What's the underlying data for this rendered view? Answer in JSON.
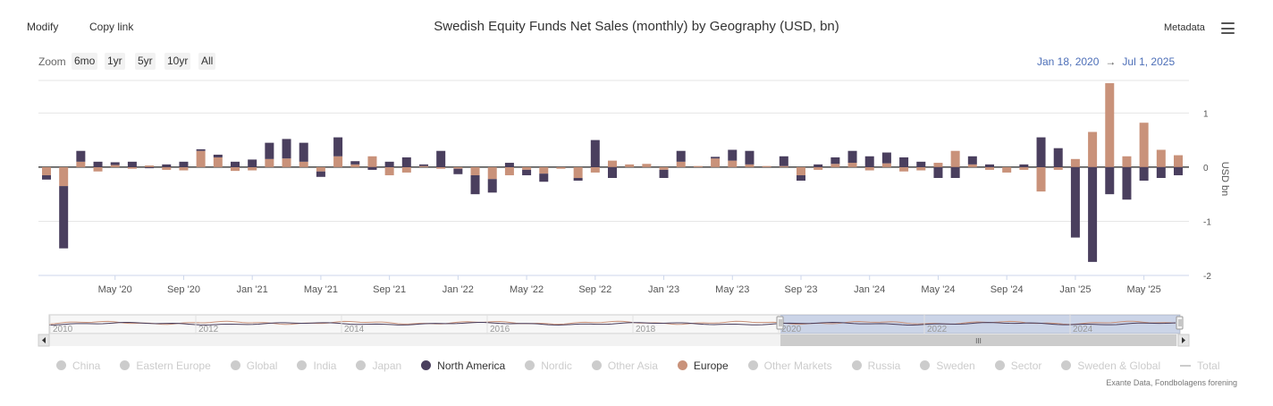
{
  "toolbar": {
    "modify": "Modify",
    "copy_link": "Copy link",
    "metadata": "Metadata"
  },
  "zoom": {
    "label": "Zoom",
    "buttons": [
      "6mo",
      "1yr",
      "5yr",
      "10yr",
      "All"
    ]
  },
  "range": {
    "from": "Jan 18, 2020",
    "arrow": "→",
    "to": "Jul 1, 2025"
  },
  "navigator": {
    "labels": [
      "2010",
      "2012",
      "2014",
      "2016",
      "2018",
      "2020",
      "2022",
      "2024"
    ],
    "grip": "III"
  },
  "legend": [
    {
      "name": "China",
      "color": "#cccccc",
      "active": false
    },
    {
      "name": "Eastern Europe",
      "color": "#cccccc",
      "active": false
    },
    {
      "name": "Global",
      "color": "#cccccc",
      "active": false
    },
    {
      "name": "India",
      "color": "#cccccc",
      "active": false
    },
    {
      "name": "Japan",
      "color": "#cccccc",
      "active": false
    },
    {
      "name": "North America",
      "color": "#4a3f5e",
      "active": true
    },
    {
      "name": "Nordic",
      "color": "#cccccc",
      "active": false
    },
    {
      "name": "Other Asia",
      "color": "#cccccc",
      "active": false
    },
    {
      "name": "Europe",
      "color": "#c9927a",
      "active": true
    },
    {
      "name": "Other Markets",
      "color": "#cccccc",
      "active": false
    },
    {
      "name": "Russia",
      "color": "#cccccc",
      "active": false
    },
    {
      "name": "Sweden",
      "color": "#cccccc",
      "active": false
    },
    {
      "name": "Sector",
      "color": "#cccccc",
      "active": false
    },
    {
      "name": "Sweden & Global",
      "color": "#cccccc",
      "active": false
    },
    {
      "name": "Total",
      "color": "#cccccc",
      "active": false,
      "line": true
    }
  ],
  "credits": "Exante Data, Fondbolagens forening",
  "chart_data": {
    "type": "bar",
    "stacked": true,
    "title": "Swedish Equity Funds Net Sales (monthly) by Geography (USD, bn)",
    "ylabel": "USD bn",
    "ylim": [
      -2.0,
      1.6
    ],
    "yticks": [
      1,
      0,
      -1,
      -2
    ],
    "y_axis_position": "right",
    "grid": true,
    "legend_position": "bottom",
    "x_tick_labels": [
      "May '20",
      "Sep '20",
      "Jan '21",
      "May '21",
      "Sep '21",
      "Jan '22",
      "May '22",
      "Sep '22",
      "Jan '23",
      "May '23",
      "Sep '23",
      "Jan '24",
      "May '24",
      "Sep '24",
      "Jan '25",
      "May '25"
    ],
    "categories": [
      "Jan '20",
      "Feb '20",
      "Mar '20",
      "Apr '20",
      "May '20",
      "Jun '20",
      "Jul '20",
      "Aug '20",
      "Sep '20",
      "Oct '20",
      "Nov '20",
      "Dec '20",
      "Jan '21",
      "Feb '21",
      "Mar '21",
      "Apr '21",
      "May '21",
      "Jun '21",
      "Jul '21",
      "Aug '21",
      "Sep '21",
      "Oct '21",
      "Nov '21",
      "Dec '21",
      "Jan '22",
      "Feb '22",
      "Mar '22",
      "Apr '22",
      "May '22",
      "Jun '22",
      "Jul '22",
      "Aug '22",
      "Sep '22",
      "Oct '22",
      "Nov '22",
      "Dec '22",
      "Jan '23",
      "Feb '23",
      "Mar '23",
      "Apr '23",
      "May '23",
      "Jun '23",
      "Jul '23",
      "Aug '23",
      "Sep '23",
      "Oct '23",
      "Nov '23",
      "Dec '23",
      "Jan '24",
      "Feb '24",
      "Mar '24",
      "Apr '24",
      "May '24",
      "Jun '24",
      "Jul '24",
      "Aug '24",
      "Sep '24",
      "Oct '24",
      "Nov '24",
      "Dec '24",
      "Jan '25",
      "Feb '25",
      "Mar '25",
      "Apr '25",
      "May '25",
      "Jun '25",
      "Jul '25"
    ],
    "series": [
      {
        "name": "Europe",
        "color": "#c9927a",
        "values": [
          -0.15,
          -0.35,
          0.1,
          -0.08,
          0.04,
          -0.03,
          0.03,
          -0.05,
          -0.06,
          0.3,
          0.18,
          -0.07,
          -0.06,
          0.15,
          0.16,
          0.1,
          -0.08,
          0.2,
          0.05,
          0.2,
          -0.15,
          -0.1,
          0.02,
          -0.03,
          -0.03,
          -0.15,
          -0.22,
          -0.15,
          -0.05,
          -0.12,
          -0.03,
          -0.2,
          -0.1,
          0.12,
          0.05,
          0.06,
          -0.05,
          0.1,
          0.02,
          0.16,
          0.12,
          0.05,
          0.02,
          0.02,
          -0.15,
          -0.05,
          0.06,
          0.08,
          -0.06,
          0.07,
          -0.08,
          -0.06,
          0.08,
          0.3,
          0.05,
          -0.05,
          -0.1,
          -0.05,
          -0.45,
          -0.05,
          0.15,
          0.65,
          1.55,
          0.2,
          0.82,
          0.32,
          0.22
        ]
      },
      {
        "name": "North America",
        "color": "#4a3f5e",
        "values": [
          -0.08,
          -1.15,
          0.2,
          0.1,
          0.05,
          0.1,
          -0.02,
          0.05,
          0.1,
          0.03,
          0.05,
          0.1,
          0.14,
          0.3,
          0.36,
          0.35,
          -0.1,
          0.35,
          0.06,
          -0.05,
          0.1,
          0.18,
          0.03,
          0.3,
          -0.1,
          -0.35,
          -0.25,
          0.08,
          -0.1,
          -0.15,
          0.0,
          -0.05,
          0.5,
          -0.2,
          0.0,
          0.0,
          -0.15,
          0.2,
          0.0,
          0.03,
          0.2,
          0.25,
          0.0,
          0.18,
          -0.1,
          0.05,
          0.12,
          0.22,
          0.2,
          0.2,
          0.18,
          0.1,
          -0.2,
          -0.2,
          0.15,
          0.05,
          0.0,
          0.05,
          0.55,
          0.35,
          -1.3,
          -1.75,
          -0.5,
          -0.6,
          -0.25,
          -0.2,
          -0.15
        ]
      }
    ]
  }
}
